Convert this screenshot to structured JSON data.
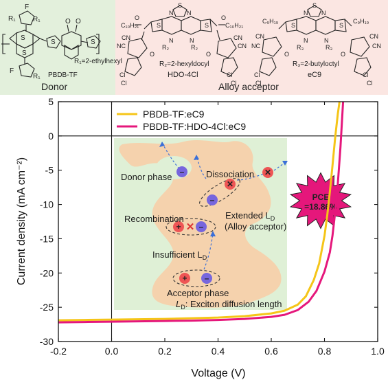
{
  "top_panel": {
    "donor": {
      "section_label": "Donor",
      "molecule_name": "PBDB-TF",
      "substituent": "R₁=2-ethylhexyl",
      "bg_color": "#e3f0dc"
    },
    "acceptor": {
      "section_label": "Alloy acceptor",
      "molecule_1": {
        "name": "HDO-4Cl",
        "substituent": "R₂=2-hexyldocyl",
        "side_chain": "C₁₀H₂₁"
      },
      "molecule_2": {
        "name": "eC9",
        "substituent": "R₃=2-butyloctyl",
        "side_chain": "C₉H₁₉"
      },
      "bg_color": "#fbe6e2"
    },
    "atom_labels": {
      "S": "S",
      "N": "N",
      "O": "O",
      "F": "F",
      "Cl": "Cl",
      "CN": "CN",
      "NC": "NC",
      "R1": "R₁",
      "R2": "R₂",
      "R3": "R₃"
    }
  },
  "chart_data": {
    "type": "line",
    "xlabel": "Voltage (V)",
    "ylabel": "Current density (mA cm⁻²)",
    "xlim": [
      -0.2,
      1.0
    ],
    "ylim": [
      -30,
      5
    ],
    "xticks": [
      -0.2,
      0.0,
      0.2,
      0.4,
      0.6,
      0.8,
      1.0
    ],
    "xtick_labels": [
      "-0.2",
      "0.0",
      "0.2",
      "0.4",
      "0.6",
      "0.8",
      "1.0"
    ],
    "yticks": [
      -30,
      -25,
      -20,
      -15,
      -10,
      -5,
      0,
      5
    ],
    "ytick_labels": [
      "-30",
      "-25",
      "-20",
      "-15",
      "-10",
      "-5",
      "0",
      "5"
    ],
    "zero_lines": true,
    "legend_position": "top-left",
    "series": [
      {
        "name": "PBDB-TF:eC9",
        "color": "#f5c518",
        "x": [
          -0.2,
          -0.1,
          0.0,
          0.1,
          0.2,
          0.3,
          0.4,
          0.5,
          0.6,
          0.65,
          0.7,
          0.73,
          0.76,
          0.78,
          0.8,
          0.81,
          0.82,
          0.83,
          0.84,
          0.85,
          0.86
        ],
        "y": [
          -26.9,
          -26.85,
          -26.8,
          -26.75,
          -26.7,
          -26.6,
          -26.5,
          -26.3,
          -25.9,
          -25.5,
          -24.6,
          -23.4,
          -21.0,
          -18.6,
          -14.6,
          -11.7,
          -8.2,
          -4.4,
          -0.3,
          3.2,
          6.0
        ]
      },
      {
        "name": "PBDB-TF:HDO-4Cl:eC9",
        "color": "#e5177b",
        "x": [
          -0.2,
          -0.1,
          0.0,
          0.1,
          0.2,
          0.3,
          0.4,
          0.5,
          0.6,
          0.65,
          0.7,
          0.74,
          0.77,
          0.8,
          0.82,
          0.83,
          0.84,
          0.85,
          0.86,
          0.87
        ],
        "y": [
          -27.2,
          -27.15,
          -27.1,
          -27.05,
          -27.0,
          -26.95,
          -26.85,
          -26.7,
          -26.4,
          -26.1,
          -25.4,
          -24.2,
          -22.6,
          -19.8,
          -17.0,
          -14.6,
          -11.2,
          -7.0,
          -1.6,
          5.0
        ]
      }
    ],
    "annotations": {
      "pce": {
        "line1": "PCE",
        "line2": "=18.86%",
        "color": "#e5177b"
      },
      "inset": {
        "donor_phase": "Donor phase",
        "acceptor_phase": "Acceptor phase",
        "dissociation": "Dissociation",
        "recombination": "Recombination",
        "insufficient": "Insufficient L",
        "insufficient_sub": "D",
        "extended": "Extended L",
        "extended_sub": "D",
        "alloy": "(Alloy acceptor)",
        "diffusion_sym": "L",
        "diffusion_sub": "D",
        "diffusion_text": ": Exciton diffusion length",
        "plus": "+",
        "minus": "–",
        "cross": "✕",
        "donor_color": "#dff0d6",
        "acceptor_color": "#f5d2ad",
        "hole_color": "#ee5555",
        "electron_color": "#7766dd"
      }
    }
  }
}
